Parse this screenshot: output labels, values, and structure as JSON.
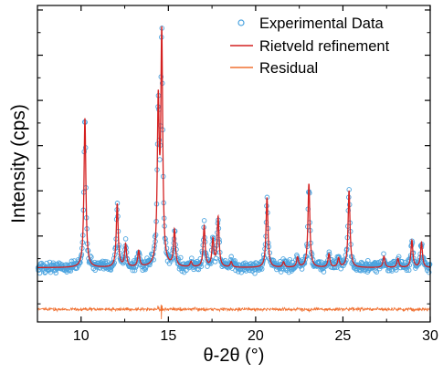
{
  "chart_data": {
    "type": "line",
    "title": "",
    "xlabel": "θ-2θ (°)",
    "ylabel": "Intensity (cps)",
    "xlim": [
      7.5,
      30
    ],
    "ylim": [
      -0.9,
      6.1
    ],
    "xticks": [
      10,
      15,
      20,
      25,
      30
    ],
    "xtick_labels": [
      "10",
      "15",
      "20",
      "25",
      "30"
    ],
    "y_tick_labels_shown": false,
    "grid": false,
    "legend_position": "top-right",
    "background": 0.3,
    "residual_offset": -0.62,
    "peaks": [
      {
        "x": 10.22,
        "height": 3.3
      },
      {
        "x": 12.07,
        "height": 1.4
      },
      {
        "x": 12.55,
        "height": 0.5
      },
      {
        "x": 13.3,
        "height": 0.35
      },
      {
        "x": 14.42,
        "height": 3.45
      },
      {
        "x": 14.62,
        "height": 5.0
      },
      {
        "x": 15.35,
        "height": 0.8
      },
      {
        "x": 16.3,
        "height": 0.12
      },
      {
        "x": 17.05,
        "height": 0.9
      },
      {
        "x": 17.55,
        "height": 0.6
      },
      {
        "x": 17.85,
        "height": 1.1
      },
      {
        "x": 18.6,
        "height": 0.12
      },
      {
        "x": 20.65,
        "height": 1.55
      },
      {
        "x": 21.6,
        "height": 0.12
      },
      {
        "x": 22.4,
        "height": 0.22
      },
      {
        "x": 23.05,
        "height": 1.85
      },
      {
        "x": 24.2,
        "height": 0.3
      },
      {
        "x": 24.75,
        "height": 0.2
      },
      {
        "x": 25.35,
        "height": 1.7
      },
      {
        "x": 27.35,
        "height": 0.25
      },
      {
        "x": 28.15,
        "height": 0.2
      },
      {
        "x": 28.95,
        "height": 0.6
      },
      {
        "x": 29.5,
        "height": 0.55
      }
    ],
    "series": [
      {
        "name": "Experimental Data",
        "style": "open circles",
        "color": "#4aa3df"
      },
      {
        "name": "Rietveld refinement",
        "style": "line",
        "color": "#d42020"
      },
      {
        "name": "Residual",
        "style": "line",
        "color": "#f07030"
      }
    ]
  }
}
